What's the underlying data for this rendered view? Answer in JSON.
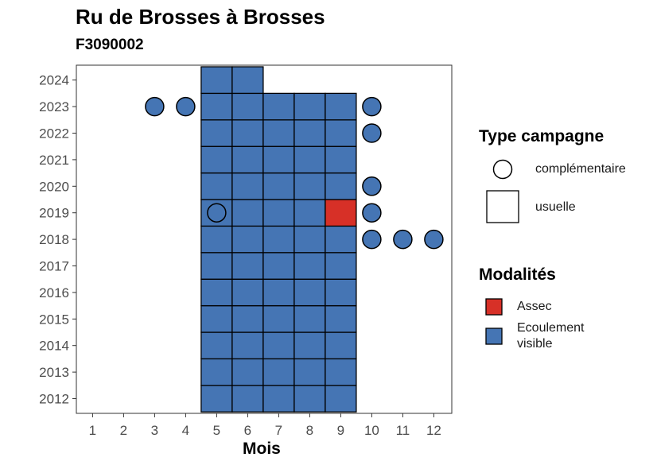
{
  "chart_data": {
    "type": "scatter",
    "title": "Ru de Brosses à Brosses",
    "subtitle": "F3090002",
    "xlabel": "Mois",
    "ylabel": "",
    "x_ticks": [
      1,
      2,
      3,
      4,
      5,
      6,
      7,
      8,
      9,
      10,
      11,
      12
    ],
    "y_ticks": [
      2012,
      2013,
      2014,
      2015,
      2016,
      2017,
      2018,
      2019,
      2020,
      2021,
      2022,
      2023,
      2024
    ],
    "xlim": [
      0.5,
      12.5
    ],
    "ylim": [
      2011.4,
      2024.6
    ],
    "grid": false,
    "legend_position": "right",
    "colors": {
      "Assec": "#d73027",
      "Ecoulement visible": "#4575b4"
    },
    "legends": {
      "type": {
        "title": "Type campagne",
        "items": [
          {
            "key": "complementaire",
            "label": "complémentaire",
            "shape": "circle"
          },
          {
            "key": "usuelle",
            "label": "usuelle",
            "shape": "square"
          }
        ]
      },
      "modalite": {
        "title": "Modalités",
        "items": [
          {
            "key": "Assec",
            "label": "Assec",
            "label_lines": [
              "Assec"
            ]
          },
          {
            "key": "Ecoulement visible",
            "label": "Ecoulement visible",
            "label_lines": [
              "Ecoulement",
              "visible"
            ]
          }
        ]
      }
    },
    "usuelle": [
      {
        "year": 2012,
        "months": [
          5,
          6,
          7,
          8,
          9
        ],
        "modalite": "Ecoulement visible"
      },
      {
        "year": 2013,
        "months": [
          5,
          6,
          7,
          8,
          9
        ],
        "modalite": "Ecoulement visible"
      },
      {
        "year": 2014,
        "months": [
          5,
          6,
          7,
          8,
          9
        ],
        "modalite": "Ecoulement visible"
      },
      {
        "year": 2015,
        "months": [
          5,
          6,
          7,
          8,
          9
        ],
        "modalite": "Ecoulement visible"
      },
      {
        "year": 2016,
        "months": [
          5,
          6,
          7,
          8,
          9
        ],
        "modalite": "Ecoulement visible"
      },
      {
        "year": 2017,
        "months": [
          5,
          6,
          7,
          8,
          9
        ],
        "modalite": "Ecoulement visible"
      },
      {
        "year": 2018,
        "months": [
          5,
          6,
          7,
          8,
          9
        ],
        "modalite": "Ecoulement visible"
      },
      {
        "year": 2019,
        "months": [
          5,
          6,
          7,
          8
        ],
        "modalite": "Ecoulement visible"
      },
      {
        "year": 2019,
        "months": [
          9
        ],
        "modalite": "Assec"
      },
      {
        "year": 2020,
        "months": [
          5,
          6,
          7,
          8,
          9
        ],
        "modalite": "Ecoulement visible"
      },
      {
        "year": 2021,
        "months": [
          5,
          6,
          7,
          8,
          9
        ],
        "modalite": "Ecoulement visible"
      },
      {
        "year": 2022,
        "months": [
          5,
          6,
          7,
          8,
          9
        ],
        "modalite": "Ecoulement visible"
      },
      {
        "year": 2023,
        "months": [
          5,
          6,
          7,
          8,
          9
        ],
        "modalite": "Ecoulement visible"
      },
      {
        "year": 2024,
        "months": [
          5,
          6
        ],
        "modalite": "Ecoulement visible"
      }
    ],
    "complementaire": [
      {
        "year": 2023,
        "month": 3,
        "modalite": "Ecoulement visible"
      },
      {
        "year": 2023,
        "month": 4,
        "modalite": "Ecoulement visible"
      },
      {
        "year": 2023,
        "month": 10,
        "modalite": "Ecoulement visible"
      },
      {
        "year": 2022,
        "month": 10,
        "modalite": "Ecoulement visible"
      },
      {
        "year": 2020,
        "month": 10,
        "modalite": "Ecoulement visible"
      },
      {
        "year": 2019,
        "month": 5,
        "modalite": "Ecoulement visible"
      },
      {
        "year": 2019,
        "month": 10,
        "modalite": "Ecoulement visible"
      },
      {
        "year": 2018,
        "month": 10,
        "modalite": "Ecoulement visible"
      },
      {
        "year": 2018,
        "month": 11,
        "modalite": "Ecoulement visible"
      },
      {
        "year": 2018,
        "month": 12,
        "modalite": "Ecoulement visible"
      }
    ]
  }
}
